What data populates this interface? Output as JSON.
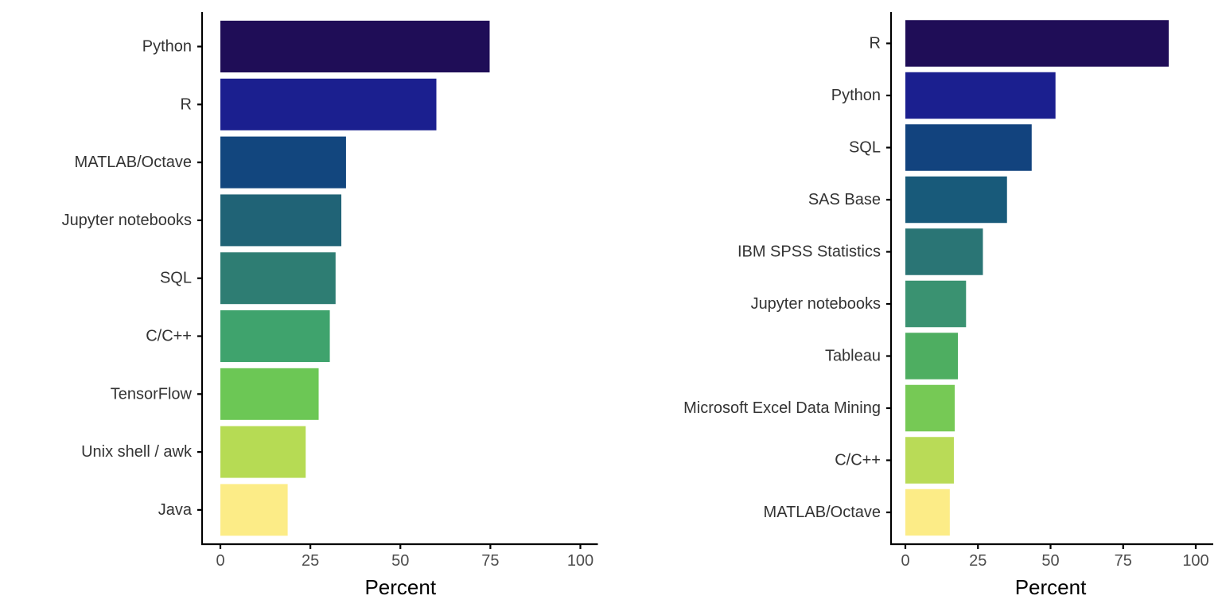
{
  "chart_data": [
    {
      "type": "bar",
      "orientation": "horizontal",
      "categories": [
        "Python",
        "R",
        "MATLAB/Octave",
        "Jupyter notebooks",
        "SQL",
        "C/C++",
        "TensorFlow",
        "Unix shell / awk",
        "Java"
      ],
      "values": [
        74.8,
        60.0,
        34.9,
        33.6,
        32.0,
        30.4,
        27.3,
        23.7,
        18.7
      ],
      "colors": [
        "#1f0d57",
        "#1b1f8f",
        "#12467e",
        "#206376",
        "#2e7d73",
        "#3fa36d",
        "#6cc755",
        "#b6db54",
        "#fcec87"
      ],
      "xlabel": "Percent",
      "ylabel": "",
      "xlim": [
        0,
        100
      ],
      "xticks": [
        "0",
        "25",
        "50",
        "75",
        "100"
      ],
      "grid": false,
      "legend": "none"
    },
    {
      "type": "bar",
      "orientation": "horizontal",
      "categories": [
        "R",
        "Python",
        "SQL",
        "SAS Base",
        "IBM SPSS Statistics",
        "Jupyter notebooks",
        "Tableau",
        "Microsoft Excel Data Mining",
        "C/C++",
        "MATLAB/Octave"
      ],
      "values": [
        90.7,
        51.7,
        43.5,
        35.0,
        26.7,
        20.9,
        18.1,
        17.0,
        16.7,
        15.3
      ],
      "colors": [
        "#1f0d57",
        "#1b1f8f",
        "#12437e",
        "#185a7a",
        "#2a7575",
        "#3a9271",
        "#4eae61",
        "#76c955",
        "#b9db57",
        "#fcec87"
      ],
      "xlabel": "Percent",
      "ylabel": "",
      "xlim": [
        0,
        100
      ],
      "xticks": [
        "0",
        "25",
        "50",
        "75",
        "100"
      ],
      "grid": false,
      "legend": "none"
    }
  ]
}
